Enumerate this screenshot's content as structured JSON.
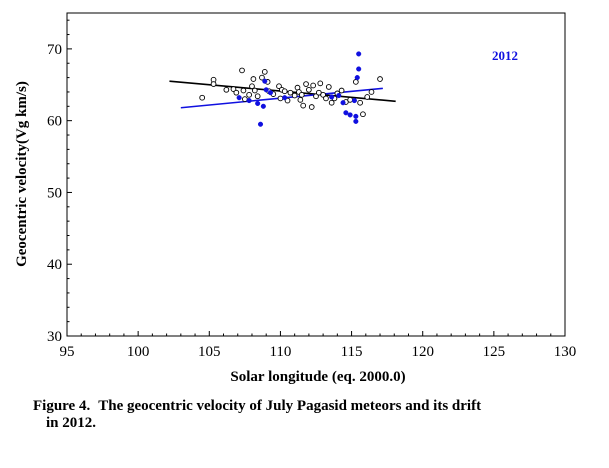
{
  "chart_data": {
    "type": "scatter",
    "xlabel": "Solar longitude (eq. 2000.0)",
    "ylabel": "Geocentric velocity(Vg km/s)",
    "xlim": [
      95,
      130
    ],
    "ylim": [
      30,
      75
    ],
    "xticks": [
      95,
      100,
      105,
      110,
      115,
      120,
      125,
      130
    ],
    "yticks": [
      30,
      40,
      50,
      60,
      70
    ],
    "annotation": "2012",
    "series": [
      {
        "name": "open circles (black)",
        "marker": "open-circle",
        "color": "#000000",
        "points": [
          [
            104.5,
            63.2
          ],
          [
            105.3,
            65.7
          ],
          [
            105.3,
            65.1
          ],
          [
            106.2,
            64.3
          ],
          [
            106.7,
            64.4
          ],
          [
            106.9,
            63.9
          ],
          [
            107.3,
            67.0
          ],
          [
            107.4,
            64.2
          ],
          [
            107.5,
            63.0
          ],
          [
            107.8,
            63.6
          ],
          [
            108.0,
            64.8
          ],
          [
            108.1,
            65.8
          ],
          [
            108.2,
            64.2
          ],
          [
            108.4,
            63.4
          ],
          [
            108.7,
            66.0
          ],
          [
            108.9,
            66.8
          ],
          [
            109.1,
            65.4
          ],
          [
            109.2,
            64.1
          ],
          [
            109.5,
            63.7
          ],
          [
            109.9,
            64.8
          ],
          [
            110.0,
            63.1
          ],
          [
            110.1,
            64.3
          ],
          [
            110.3,
            64.1
          ],
          [
            110.5,
            62.8
          ],
          [
            110.7,
            63.9
          ],
          [
            111.0,
            63.5
          ],
          [
            111.2,
            64.6
          ],
          [
            111.3,
            64.0
          ],
          [
            111.4,
            62.9
          ],
          [
            111.5,
            63.6
          ],
          [
            111.6,
            62.1
          ],
          [
            111.8,
            65.1
          ],
          [
            112.0,
            64.3
          ],
          [
            112.2,
            61.9
          ],
          [
            112.3,
            64.9
          ],
          [
            112.5,
            63.4
          ],
          [
            112.7,
            63.9
          ],
          [
            112.8,
            65.2
          ],
          [
            113.0,
            63.6
          ],
          [
            113.2,
            63.1
          ],
          [
            113.4,
            64.7
          ],
          [
            113.6,
            62.5
          ],
          [
            113.8,
            63.1
          ],
          [
            114.0,
            63.8
          ],
          [
            114.3,
            64.2
          ],
          [
            114.6,
            62.6
          ],
          [
            114.9,
            62.9
          ],
          [
            115.3,
            65.4
          ],
          [
            115.6,
            62.5
          ],
          [
            115.8,
            60.9
          ],
          [
            116.1,
            63.3
          ],
          [
            116.4,
            64.0
          ],
          [
            117.0,
            65.8
          ]
        ]
      },
      {
        "name": "filled dots (blue)",
        "marker": "filled-circle",
        "color": "#1010e0",
        "points": [
          [
            107.1,
            63.2
          ],
          [
            107.8,
            62.8
          ],
          [
            108.4,
            62.4
          ],
          [
            108.6,
            59.5
          ],
          [
            108.8,
            62.0
          ],
          [
            108.9,
            65.5
          ],
          [
            109.0,
            64.3
          ],
          [
            109.3,
            63.9
          ],
          [
            110.3,
            63.2
          ],
          [
            113.6,
            63.3
          ],
          [
            114.1,
            63.5
          ],
          [
            114.4,
            62.5
          ],
          [
            114.6,
            61.1
          ],
          [
            114.9,
            60.8
          ],
          [
            115.2,
            62.8
          ],
          [
            115.3,
            59.9
          ],
          [
            115.3,
            60.6
          ],
          [
            115.4,
            66.0
          ],
          [
            115.5,
            67.2
          ],
          [
            115.5,
            69.3
          ]
        ]
      }
    ],
    "trendlines": [
      {
        "name": "black fit",
        "color": "#000000",
        "x": [
          102.2,
          118.1
        ],
        "y": [
          65.5,
          62.7
        ]
      },
      {
        "name": "blue fit",
        "color": "#1010e0",
        "x": [
          103.0,
          117.2
        ],
        "y": [
          61.8,
          64.5
        ]
      }
    ]
  },
  "caption": {
    "label": "Figure 4.",
    "line1": "The geocentric velocity of July Pagasid meteors and its drift",
    "line2": "in 2012."
  }
}
